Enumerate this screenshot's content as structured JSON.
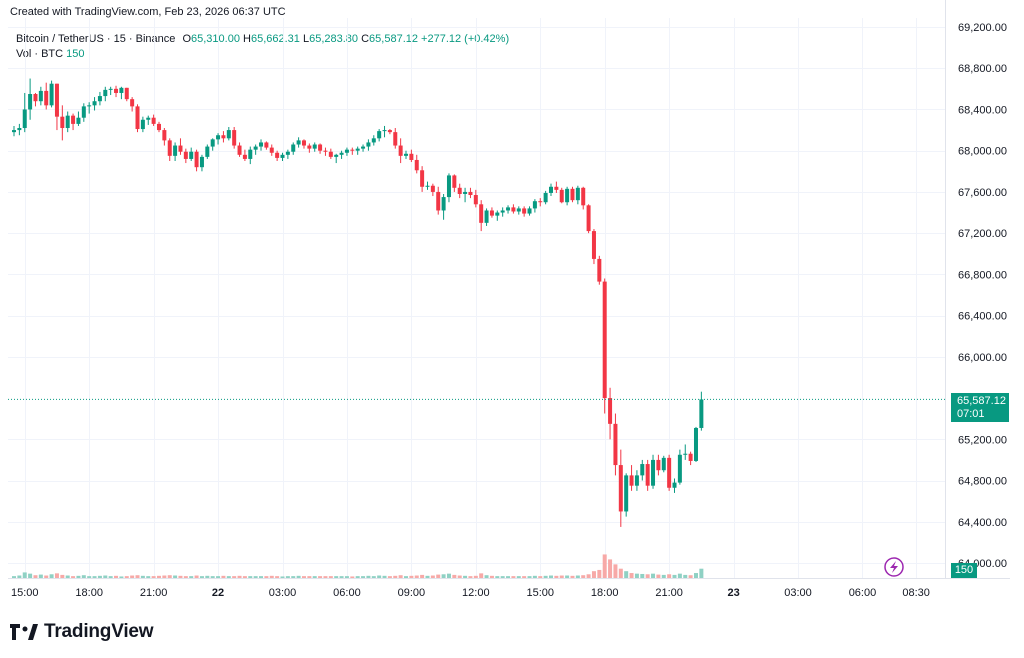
{
  "header": {
    "created_with": "Created with TradingView.com, Feb 23, 2026 06:37 UTC"
  },
  "legend": {
    "symbol": "Bitcoin / TetherUS · 15 · Binance",
    "o_label": "O",
    "o_value": "65,310.00",
    "h_label": "H",
    "h_value": "65,662.31",
    "l_label": "L",
    "l_value": "65,283.80",
    "c_label": "C",
    "c_value": "65,587.12",
    "change": "+277.12 (+0.42%)",
    "vol_label": "Vol · BTC",
    "vol_value": "150"
  },
  "price_tag": {
    "price": "65,587.12",
    "countdown": "07:01"
  },
  "volume_tag": "150",
  "footer": {
    "brand": "TradingView"
  },
  "colors": {
    "up": "#089981",
    "down": "#f23645",
    "up_vol": "#8fd1c4",
    "down_vol": "#f7a9a7",
    "grid": "#f0f3fa",
    "text": "#131722"
  },
  "chart_data": {
    "type": "candlestick",
    "symbol": "Bitcoin / TetherUS",
    "interval": "15",
    "exchange": "Binance",
    "y_ticks": [
      "69,200.00",
      "68,800.00",
      "68,400.00",
      "68,000.00",
      "67,600.00",
      "67,200.00",
      "66,800.00",
      "66,400.00",
      "66,000.00",
      "65,200.00",
      "64,800.00",
      "64,400.00",
      "64,000.00"
    ],
    "y_tick_values": [
      69200,
      68800,
      68400,
      68000,
      67600,
      67200,
      66800,
      66400,
      66000,
      65200,
      64800,
      64400,
      64000
    ],
    "ylim": [
      63850,
      69250
    ],
    "x_ticks": [
      "15:00",
      "18:00",
      "21:00",
      "22",
      "03:00",
      "06:00",
      "09:00",
      "12:00",
      "15:00",
      "18:00",
      "21:00",
      "23",
      "03:00",
      "06:00",
      "08:30"
    ],
    "x_tick_bars": [
      2,
      14,
      26,
      38,
      50,
      62,
      74,
      86,
      98,
      110,
      122,
      134,
      146,
      158,
      168
    ],
    "last_price": 65587.12,
    "candles": [
      [
        68180,
        68240,
        68140,
        68200,
        30
      ],
      [
        68200,
        68260,
        68150,
        68220,
        40
      ],
      [
        68220,
        68560,
        68180,
        68400,
        90
      ],
      [
        68400,
        68700,
        68300,
        68550,
        70
      ],
      [
        68550,
        68560,
        68430,
        68480,
        45
      ],
      [
        68480,
        68620,
        68440,
        68580,
        55
      ],
      [
        68580,
        68660,
        68400,
        68440,
        40
      ],
      [
        68440,
        68680,
        68420,
        68650,
        60
      ],
      [
        68650,
        68650,
        68200,
        68330,
        75
      ],
      [
        68330,
        68440,
        68100,
        68220,
        50
      ],
      [
        68220,
        68380,
        68180,
        68340,
        40
      ],
      [
        68340,
        68360,
        68200,
        68260,
        30
      ],
      [
        68260,
        68380,
        68240,
        68320,
        35
      ],
      [
        68320,
        68460,
        68280,
        68430,
        45
      ],
      [
        68430,
        68470,
        68360,
        68440,
        30
      ],
      [
        68440,
        68520,
        68390,
        68480,
        30
      ],
      [
        68480,
        68570,
        68440,
        68530,
        35
      ],
      [
        68530,
        68620,
        68480,
        68590,
        40
      ],
      [
        68590,
        68620,
        68540,
        68600,
        30
      ],
      [
        68600,
        68630,
        68520,
        68560,
        35
      ],
      [
        68560,
        68620,
        68500,
        68610,
        25
      ],
      [
        68610,
        68610,
        68480,
        68500,
        30
      ],
      [
        68500,
        68520,
        68380,
        68430,
        40
      ],
      [
        68430,
        68450,
        68180,
        68210,
        45
      ],
      [
        68210,
        68330,
        68180,
        68300,
        35
      ],
      [
        68300,
        68340,
        68250,
        68320,
        30
      ],
      [
        68320,
        68350,
        68240,
        68260,
        30
      ],
      [
        68260,
        68280,
        68180,
        68200,
        35
      ],
      [
        68200,
        68220,
        68050,
        68100,
        40
      ],
      [
        68100,
        68120,
        67900,
        67950,
        45
      ],
      [
        67950,
        68080,
        67900,
        68050,
        40
      ],
      [
        68050,
        68120,
        67960,
        67990,
        35
      ],
      [
        67990,
        68020,
        67880,
        67920,
        30
      ],
      [
        67920,
        68030,
        67900,
        67990,
        30
      ],
      [
        67990,
        68010,
        67800,
        67840,
        40
      ],
      [
        67840,
        67960,
        67800,
        67940,
        30
      ],
      [
        67940,
        68060,
        67920,
        68040,
        35
      ],
      [
        68040,
        68120,
        68000,
        68110,
        30
      ],
      [
        68110,
        68170,
        68060,
        68150,
        30
      ],
      [
        68150,
        68190,
        68080,
        68120,
        35
      ],
      [
        68120,
        68230,
        68100,
        68200,
        30
      ],
      [
        68200,
        68230,
        68020,
        68050,
        30
      ],
      [
        68050,
        68080,
        67940,
        67960,
        35
      ],
      [
        67960,
        68010,
        67900,
        67920,
        30
      ],
      [
        67920,
        68040,
        67870,
        68010,
        30
      ],
      [
        68010,
        68060,
        67960,
        68040,
        30
      ],
      [
        68040,
        68110,
        68000,
        68080,
        30
      ],
      [
        68080,
        68090,
        68010,
        68030,
        30
      ],
      [
        68030,
        68060,
        67950,
        67980,
        35
      ],
      [
        67980,
        68000,
        67900,
        67930,
        30
      ],
      [
        67930,
        67980,
        67900,
        67960,
        25
      ],
      [
        67960,
        68010,
        67920,
        67990,
        30
      ],
      [
        67990,
        68080,
        67960,
        68060,
        30
      ],
      [
        68060,
        68130,
        68030,
        68100,
        35
      ],
      [
        68100,
        68110,
        68020,
        68050,
        30
      ],
      [
        68050,
        68070,
        67980,
        68020,
        30
      ],
      [
        68020,
        68080,
        67990,
        68060,
        30
      ],
      [
        68060,
        68070,
        67970,
        68000,
        30
      ],
      [
        68000,
        68030,
        67950,
        67990,
        30
      ],
      [
        67990,
        68020,
        67920,
        67940,
        30
      ],
      [
        67940,
        67970,
        67880,
        67960,
        30
      ],
      [
        67960,
        68000,
        67920,
        67980,
        30
      ],
      [
        67980,
        68030,
        67950,
        68010,
        30
      ],
      [
        68010,
        68030,
        67960,
        68000,
        25
      ],
      [
        68000,
        68040,
        67960,
        68020,
        30
      ],
      [
        68020,
        68060,
        67990,
        68040,
        30
      ],
      [
        68040,
        68110,
        68000,
        68080,
        35
      ],
      [
        68080,
        68150,
        68050,
        68120,
        30
      ],
      [
        68120,
        68210,
        68090,
        68190,
        40
      ],
      [
        68190,
        68240,
        68130,
        68200,
        35
      ],
      [
        68200,
        68210,
        68160,
        68180,
        30
      ],
      [
        68180,
        68220,
        68020,
        68050,
        35
      ],
      [
        68050,
        68120,
        67880,
        67950,
        45
      ],
      [
        67950,
        68000,
        67920,
        67970,
        30
      ],
      [
        67970,
        68010,
        67890,
        67910,
        35
      ],
      [
        67910,
        67960,
        67780,
        67810,
        40
      ],
      [
        67810,
        67850,
        67600,
        67650,
        50
      ],
      [
        67650,
        67700,
        67620,
        67660,
        35
      ],
      [
        67660,
        67680,
        67560,
        67600,
        40
      ],
      [
        67600,
        67650,
        67380,
        67420,
        55
      ],
      [
        67420,
        67580,
        67330,
        67550,
        60
      ],
      [
        67550,
        67780,
        67500,
        67760,
        70
      ],
      [
        67760,
        67770,
        67600,
        67640,
        50
      ],
      [
        67640,
        67680,
        67540,
        67580,
        40
      ],
      [
        67580,
        67640,
        67500,
        67600,
        35
      ],
      [
        67600,
        67640,
        67540,
        67570,
        30
      ],
      [
        67570,
        67620,
        67450,
        67480,
        35
      ],
      [
        67480,
        67520,
        67220,
        67300,
        75
      ],
      [
        67300,
        67440,
        67270,
        67420,
        45
      ],
      [
        67420,
        67450,
        67350,
        67370,
        35
      ],
      [
        67370,
        67420,
        67320,
        67400,
        30
      ],
      [
        67400,
        67450,
        67360,
        67420,
        30
      ],
      [
        67420,
        67470,
        67390,
        67450,
        30
      ],
      [
        67450,
        67480,
        67390,
        67410,
        30
      ],
      [
        67410,
        67460,
        67380,
        67440,
        30
      ],
      [
        67440,
        67460,
        67360,
        67390,
        30
      ],
      [
        67390,
        67460,
        67370,
        67440,
        30
      ],
      [
        67440,
        67530,
        67400,
        67510,
        35
      ],
      [
        67510,
        67540,
        67460,
        67500,
        30
      ],
      [
        67500,
        67610,
        67480,
        67590,
        35
      ],
      [
        67590,
        67680,
        67560,
        67650,
        40
      ],
      [
        67650,
        67700,
        67590,
        67620,
        35
      ],
      [
        67620,
        67640,
        67490,
        67500,
        40
      ],
      [
        67500,
        67650,
        67470,
        67630,
        40
      ],
      [
        67630,
        67650,
        67500,
        67520,
        35
      ],
      [
        67520,
        67660,
        67480,
        67640,
        40
      ],
      [
        67640,
        67650,
        67430,
        67470,
        45
      ],
      [
        67470,
        67480,
        67200,
        67220,
        60
      ],
      [
        67220,
        67240,
        66900,
        66950,
        110
      ],
      [
        66950,
        66980,
        66700,
        66730,
        130
      ],
      [
        66730,
        66760,
        65450,
        65600,
        380
      ],
      [
        65600,
        65700,
        65200,
        65350,
        300
      ],
      [
        65350,
        65450,
        64850,
        64950,
        220
      ],
      [
        64950,
        65100,
        64350,
        64500,
        150
      ],
      [
        64500,
        64870,
        64450,
        64850,
        110
      ],
      [
        64850,
        64950,
        64700,
        64750,
        80
      ],
      [
        64750,
        64900,
        64700,
        64850,
        70
      ],
      [
        64850,
        65000,
        64800,
        64960,
        65
      ],
      [
        64960,
        65000,
        64700,
        64750,
        60
      ],
      [
        64750,
        65050,
        64720,
        65000,
        70
      ],
      [
        65000,
        65050,
        64850,
        64900,
        55
      ],
      [
        64900,
        65040,
        64880,
        65020,
        50
      ],
      [
        65020,
        65050,
        64700,
        64730,
        60
      ],
      [
        64730,
        64820,
        64680,
        64780,
        50
      ],
      [
        64780,
        65100,
        64760,
        65050,
        70
      ],
      [
        65050,
        65150,
        65000,
        65060,
        50
      ],
      [
        65060,
        65080,
        64950,
        64990,
        45
      ],
      [
        64990,
        65320,
        64980,
        65310,
        80
      ],
      [
        65310,
        65662,
        65284,
        65587,
        150
      ]
    ]
  }
}
